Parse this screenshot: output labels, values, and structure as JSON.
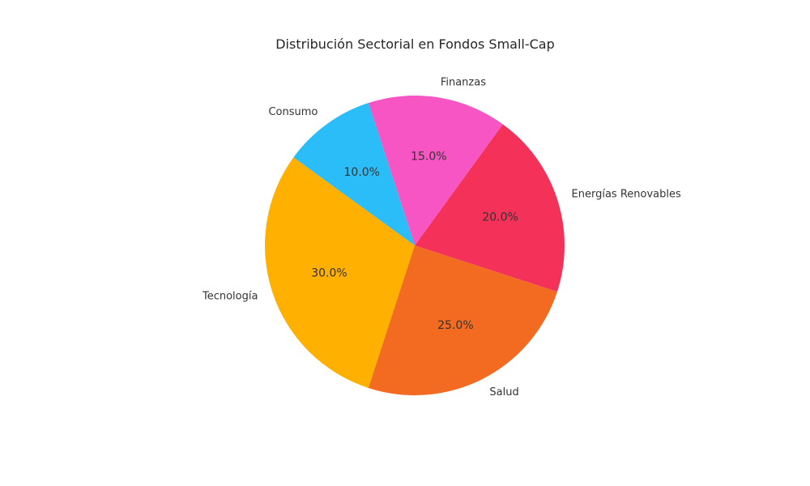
{
  "chart_data": {
    "type": "pie",
    "title": "Distribución Sectorial en Fondos Small-Cap",
    "slices": [
      {
        "label": "Tecnología",
        "value": 30.0,
        "pct_label": "30.0%",
        "color": "#FFB000"
      },
      {
        "label": "Salud",
        "value": 25.0,
        "pct_label": "25.0%",
        "color": "#F26B21"
      },
      {
        "label": "Energías Renovables",
        "value": 20.0,
        "pct_label": "20.0%",
        "color": "#F43159"
      },
      {
        "label": "Finanzas",
        "value": 15.0,
        "pct_label": "15.0%",
        "color": "#F755C3"
      },
      {
        "label": "Consumo",
        "value": 10.0,
        "pct_label": "10.0%",
        "color": "#2BBDF7"
      }
    ],
    "start_angle_deg": 144,
    "direction": "counterclockwise",
    "legend": "none"
  }
}
